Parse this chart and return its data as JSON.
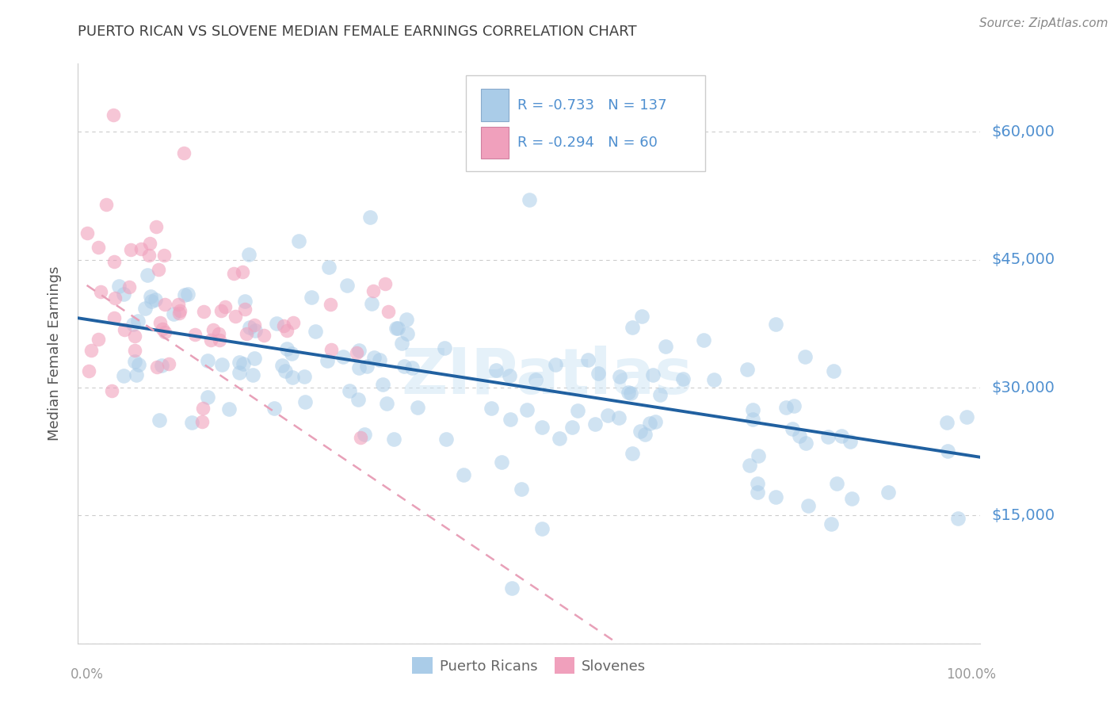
{
  "title": "PUERTO RICAN VS SLOVENE MEDIAN FEMALE EARNINGS CORRELATION CHART",
  "source": "Source: ZipAtlas.com",
  "ylabel": "Median Female Earnings",
  "yticks": [
    0,
    15000,
    30000,
    45000,
    60000
  ],
  "ytick_labels": [
    "",
    "$15,000",
    "$30,000",
    "$45,000",
    "$60,000"
  ],
  "ymin": 0,
  "ymax": 68000,
  "xmin": -0.01,
  "xmax": 1.01,
  "watermark": "ZIPatlas",
  "pr_color": "#aacce8",
  "sl_color": "#f0a0bc",
  "pr_line_color": "#2060a0",
  "sl_line_color": "#e8a0b8",
  "pr_R": -0.733,
  "pr_N": 137,
  "sl_R": -0.294,
  "sl_N": 60,
  "title_color": "#404040",
  "axis_color": "#cccccc",
  "grid_color": "#cccccc",
  "tick_label_color": "#5090d0",
  "source_color": "#888888",
  "legend_box_color": "#cccccc",
  "bottom_legend_color": "#666666"
}
